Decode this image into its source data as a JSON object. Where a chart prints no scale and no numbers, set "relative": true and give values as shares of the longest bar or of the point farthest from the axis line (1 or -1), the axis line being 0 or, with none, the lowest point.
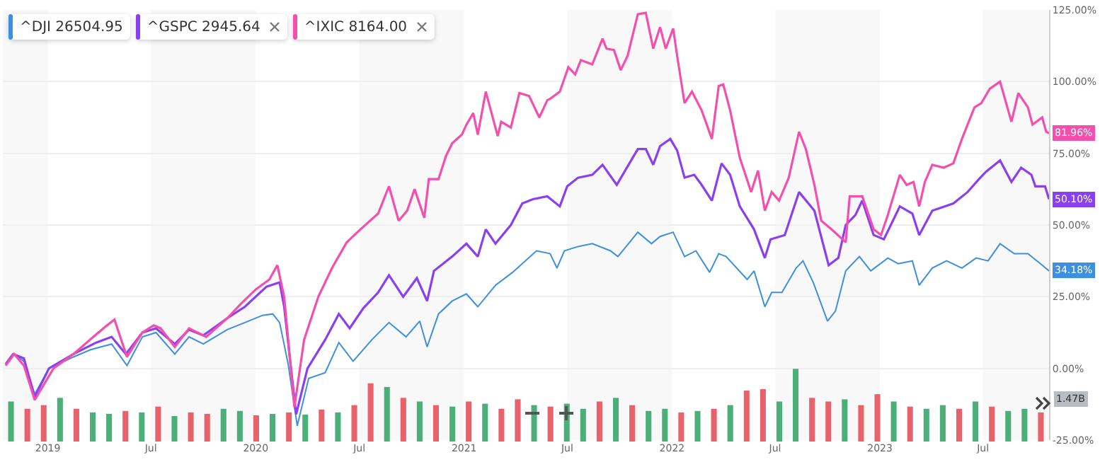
{
  "chart_data": [
    {
      "type": "line",
      "xlim": [
        "2018-10-14",
        "2023-10-25"
      ],
      "xticks": [
        {
          "value": "2019-01-01",
          "label": "2019"
        },
        {
          "value": "2019-07-01",
          "label": "Jul"
        },
        {
          "value": "2020-01-01",
          "label": "2020"
        },
        {
          "value": "2020-07-01",
          "label": "Jul"
        },
        {
          "value": "2021-01-01",
          "label": "2021"
        },
        {
          "value": "2021-07-01",
          "label": "Jul"
        },
        {
          "value": "2022-01-01",
          "label": "2022"
        },
        {
          "value": "2022-07-01",
          "label": "Jul"
        },
        {
          "value": "2023-01-01",
          "label": "2023"
        },
        {
          "value": "2023-07-01",
          "label": "Jul"
        }
      ],
      "ylim": [
        -25,
        125
      ],
      "yticks": [
        {
          "value": -25,
          "label": "-25.00%"
        },
        {
          "value": 0,
          "label": "0.00%"
        },
        {
          "value": 25,
          "label": "25.00%"
        },
        {
          "value": 50,
          "label": "50.00%"
        },
        {
          "value": 75,
          "label": "75.00%"
        },
        {
          "value": 100,
          "label": "100.00%"
        },
        {
          "value": 125,
          "label": "125.00%"
        }
      ],
      "grid": "y",
      "legend": "top left",
      "line_style": "solid",
      "bands": [
        {
          "axis": "x",
          "from": "2018-10-14",
          "to": "2019-01-01",
          "color": "#f4f4f4"
        },
        {
          "axis": "x",
          "from": "2019-07-01",
          "to": "2020-01-01",
          "color": "#f4f4f4"
        },
        {
          "axis": "x",
          "from": "2020-07-01",
          "to": "2021-01-01",
          "color": "#f4f4f4"
        },
        {
          "axis": "x",
          "from": "2021-07-01",
          "to": "2022-01-01",
          "color": "#f4f4f4"
        },
        {
          "axis": "x",
          "from": "2022-07-01",
          "to": "2023-01-01",
          "color": "#f4f4f4"
        },
        {
          "axis": "x",
          "from": "2023-07-01",
          "to": "2023-10-25",
          "color": "#f4f4f4"
        }
      ],
      "series": [
        {
          "name": "^DJI 26504.95",
          "color": "#3d8fe0",
          "x": [
            "2018-10-19",
            "2018-11-01",
            "2018-11-20",
            "2018-12-09",
            "2019-01-03",
            "2019-02-15",
            "2019-03-17",
            "2019-04-23",
            "2019-05-20",
            "2019-06-16",
            "2019-07-10",
            "2019-08-12",
            "2019-09-06",
            "2019-10-01",
            "2019-11-12",
            "2019-12-13",
            "2020-01-13",
            "2020-01-31",
            "2020-02-12",
            "2020-02-27",
            "2020-03-14",
            "2020-04-03",
            "2020-05-02",
            "2020-05-26",
            "2020-06-20",
            "2020-07-23",
            "2020-08-22",
            "2020-09-21",
            "2020-10-15",
            "2020-10-28",
            "2020-11-17",
            "2020-12-11",
            "2021-01-05",
            "2021-01-25",
            "2021-02-25",
            "2021-03-27",
            "2021-05-08",
            "2021-06-01",
            "2021-06-13",
            "2021-06-26",
            "2021-07-20",
            "2021-08-14",
            "2021-09-15",
            "2021-09-28",
            "2021-11-02",
            "2021-11-26",
            "2021-12-11",
            "2022-01-03",
            "2022-01-23",
            "2022-02-12",
            "2022-03-08",
            "2022-03-24",
            "2022-04-06",
            "2022-05-13",
            "2022-05-25",
            "2022-06-13",
            "2022-06-25",
            "2022-07-13",
            "2022-08-07",
            "2022-08-19",
            "2022-09-06",
            "2022-10-01",
            "2022-10-15",
            "2022-11-02",
            "2022-11-26",
            "2022-12-16",
            "2023-01-15",
            "2023-02-02",
            "2023-02-27",
            "2023-03-11",
            "2023-04-03",
            "2023-04-28",
            "2023-05-25",
            "2023-06-19",
            "2023-07-10",
            "2023-07-31",
            "2023-08-25",
            "2023-09-18",
            "2023-10-13",
            "2023-10-25"
          ],
          "values": [
            1.5,
            5,
            2.5,
            -9,
            0,
            4,
            6.5,
            8.5,
            1,
            11,
            12.5,
            5,
            11,
            8.5,
            13.5,
            16,
            18.5,
            19,
            16,
            1.5,
            -20,
            -3.5,
            -1.5,
            9,
            2.5,
            10,
            16,
            11,
            16.5,
            7.5,
            19,
            23.5,
            26,
            21.5,
            29,
            33.5,
            41,
            40,
            35,
            41,
            42.5,
            43.5,
            41,
            39,
            47.5,
            43.5,
            46,
            47.5,
            39,
            41,
            33.5,
            40,
            39,
            31,
            34,
            21.5,
            26.5,
            26.5,
            35,
            37.5,
            30,
            16.5,
            20,
            34,
            39,
            34,
            38.5,
            36.5,
            37.5,
            29,
            35,
            37.5,
            35,
            38.5,
            37.5,
            43.5,
            40,
            40,
            36,
            34
          ]
        },
        {
          "name": "^GSPC 2945.64",
          "color": "#8a3ff0",
          "x": [
            "2018-10-19",
            "2018-11-01",
            "2018-11-20",
            "2018-12-09",
            "2019-01-03",
            "2019-02-15",
            "2019-03-27",
            "2019-04-23",
            "2019-05-18",
            "2019-06-16",
            "2019-07-10",
            "2019-08-12",
            "2019-09-06",
            "2019-10-01",
            "2019-11-12",
            "2019-12-13",
            "2020-01-20",
            "2020-02-12",
            "2020-02-20",
            "2020-03-12",
            "2020-04-01",
            "2020-05-02",
            "2020-05-26",
            "2020-06-14",
            "2020-07-08",
            "2020-08-03",
            "2020-08-22",
            "2020-09-16",
            "2020-10-10",
            "2020-10-28",
            "2020-11-09",
            "2020-12-11",
            "2021-01-05",
            "2021-01-25",
            "2021-02-08",
            "2021-02-25",
            "2021-03-24",
            "2021-04-13",
            "2021-05-02",
            "2021-05-27",
            "2021-06-18",
            "2021-07-01",
            "2021-07-20",
            "2021-08-14",
            "2021-09-01",
            "2021-09-26",
            "2021-11-02",
            "2021-11-16",
            "2021-11-29",
            "2021-12-11",
            "2021-12-29",
            "2022-01-10",
            "2022-01-23",
            "2022-02-09",
            "2022-02-22",
            "2022-03-12",
            "2022-03-29",
            "2022-04-13",
            "2022-04-30",
            "2022-05-25",
            "2022-06-13",
            "2022-06-23",
            "2022-07-18",
            "2022-08-12",
            "2022-09-08",
            "2022-10-03",
            "2022-10-20",
            "2022-11-02",
            "2022-11-19",
            "2022-12-01",
            "2022-12-21",
            "2023-01-08",
            "2023-02-05",
            "2023-02-27",
            "2023-03-11",
            "2023-04-03",
            "2023-05-10",
            "2023-06-04",
            "2023-06-24",
            "2023-07-06",
            "2023-07-31",
            "2023-08-20",
            "2023-09-06",
            "2023-09-24",
            "2023-10-01",
            "2023-10-18",
            "2023-10-25"
          ],
          "values": [
            1.5,
            5,
            3.5,
            -10,
            0,
            5,
            9,
            11,
            5,
            12.5,
            14,
            8.5,
            13.5,
            11.5,
            17.5,
            21.5,
            28.5,
            30,
            21.5,
            -16,
            0,
            10,
            19,
            14,
            21,
            26.5,
            32.5,
            25,
            31.5,
            23.5,
            34,
            39,
            43.5,
            39,
            48.5,
            43.5,
            50,
            57.5,
            59,
            60,
            56.5,
            63.5,
            66.5,
            67.5,
            71,
            64,
            76.5,
            76.5,
            71,
            77.5,
            80,
            76,
            66.5,
            67.5,
            64,
            58.5,
            71.5,
            67.5,
            56.5,
            48.5,
            38.5,
            45,
            46.5,
            61.5,
            55,
            36,
            38.5,
            50,
            53.5,
            58.5,
            46.5,
            45,
            56.5,
            54,
            46.5,
            55,
            57.5,
            61.5,
            66,
            68.5,
            72.5,
            65,
            70,
            67.5,
            63.5,
            63.5,
            59
          ]
        },
        {
          "name": "^IXIC 8164.00",
          "color": "#f54fad",
          "x": [
            "2018-10-19",
            "2018-11-03",
            "2018-11-20",
            "2018-12-09",
            "2019-01-11",
            "2019-02-15",
            "2019-03-22",
            "2019-04-15",
            "2019-04-28",
            "2019-05-20",
            "2019-06-16",
            "2019-07-06",
            "2019-07-18",
            "2019-08-12",
            "2019-09-06",
            "2019-10-06",
            "2019-11-12",
            "2019-12-06",
            "2020-01-01",
            "2020-01-25",
            "2020-02-08",
            "2020-02-20",
            "2020-03-09",
            "2020-03-26",
            "2020-04-20",
            "2020-05-14",
            "2020-06-09",
            "2020-07-03",
            "2020-08-03",
            "2020-08-22",
            "2020-09-08",
            "2020-09-23",
            "2020-10-06",
            "2020-10-23",
            "2020-10-31",
            "2020-11-17",
            "2020-11-30",
            "2020-12-11",
            "2020-12-28",
            "2021-01-05",
            "2021-01-17",
            "2021-01-25",
            "2021-02-08",
            "2021-03-01",
            "2021-03-07",
            "2021-03-24",
            "2021-04-08",
            "2021-04-25",
            "2021-05-13",
            "2021-05-27",
            "2021-06-01",
            "2021-06-18",
            "2021-07-03",
            "2021-07-15",
            "2021-07-25",
            "2021-08-14",
            "2021-09-01",
            "2021-09-08",
            "2021-09-21",
            "2021-10-03",
            "2021-10-15",
            "2021-11-02",
            "2021-11-16",
            "2021-11-29",
            "2021-12-11",
            "2021-12-21",
            "2022-01-03",
            "2022-01-10",
            "2022-01-23",
            "2022-02-05",
            "2022-02-22",
            "2022-03-12",
            "2022-03-24",
            "2022-04-01",
            "2022-04-13",
            "2022-04-30",
            "2022-05-20",
            "2022-06-01",
            "2022-06-13",
            "2022-06-25",
            "2022-07-08",
            "2022-07-25",
            "2022-08-12",
            "2022-08-24",
            "2022-09-08",
            "2022-09-20",
            "2022-10-08",
            "2022-11-02",
            "2022-11-09",
            "2022-12-01",
            "2022-12-21",
            "2023-01-03",
            "2023-01-15",
            "2023-02-05",
            "2023-02-17",
            "2023-03-01",
            "2023-03-11",
            "2023-03-21",
            "2023-04-03",
            "2023-04-23",
            "2023-05-10",
            "2023-05-25",
            "2023-06-16",
            "2023-06-28",
            "2023-07-13",
            "2023-07-31",
            "2023-08-20",
            "2023-09-01",
            "2023-09-18",
            "2023-09-26",
            "2023-10-13",
            "2023-10-20",
            "2023-10-25"
          ],
          "values": [
            1,
            5,
            1,
            -11,
            0,
            5,
            11,
            15,
            17,
            4,
            12.5,
            15,
            14,
            7.5,
            14,
            11,
            17.5,
            22.5,
            27.5,
            31,
            36,
            25,
            -13.5,
            10,
            25,
            35,
            44,
            48.5,
            54,
            63.5,
            51.5,
            55,
            62.5,
            52.5,
            66,
            66,
            74,
            78.5,
            81.5,
            85,
            89,
            81.5,
            96.5,
            81,
            86,
            84,
            96,
            95,
            87.5,
            93.5,
            94,
            96.5,
            105,
            102.5,
            107.5,
            106,
            115,
            111.5,
            111,
            104,
            109,
            123.5,
            124,
            111.5,
            119,
            111.5,
            118.5,
            109,
            92.5,
            96.5,
            90,
            80,
            98.5,
            99,
            90,
            73.5,
            61.5,
            69,
            55,
            61.5,
            58.5,
            66.5,
            82.5,
            76.5,
            64,
            51.5,
            48.5,
            44,
            60,
            60,
            48.5,
            46.5,
            53.5,
            67.5,
            64,
            65,
            56.5,
            65,
            71,
            70,
            71.5,
            80,
            91,
            92.5,
            97.5,
            100,
            86,
            96,
            91,
            85,
            87.5,
            82.5,
            82
          ]
        }
      ],
      "annotations": [
        {
          "text": "34.18%",
          "x": "2023-10-25",
          "y": 34.18
        },
        {
          "text": "50.10%",
          "x": "2023-10-25",
          "y": 59
        },
        {
          "text": "81.96%",
          "x": "2023-10-25",
          "y": 81.96
        }
      ]
    },
    {
      "type": "bar",
      "relative": true,
      "categories": [
        null,
        null,
        null,
        null,
        null,
        null,
        null,
        null,
        null,
        null,
        null,
        null,
        null,
        null,
        null,
        null,
        null,
        null,
        null,
        null,
        null,
        null,
        null,
        null,
        null,
        null,
        null,
        null,
        null,
        null,
        null,
        null,
        null,
        null,
        null,
        null,
        null,
        null,
        null,
        null,
        null,
        null,
        null,
        null,
        null,
        null,
        null,
        null,
        null,
        null,
        null,
        null,
        null,
        null,
        null,
        null,
        null,
        null,
        null,
        null,
        null,
        null,
        null,
        null
      ],
      "values": [
        0.55,
        0.45,
        0.5,
        0.6,
        0.45,
        0.4,
        0.38,
        0.42,
        0.4,
        0.48,
        0.35,
        0.4,
        0.38,
        0.45,
        0.42,
        0.36,
        0.38,
        0.4,
        0.37,
        0.44,
        0.4,
        0.5,
        0.8,
        0.75,
        0.6,
        0.55,
        0.5,
        0.48,
        0.55,
        0.52,
        0.45,
        0.58,
        0.5,
        0.48,
        0.52,
        0.45,
        0.55,
        0.6,
        0.5,
        0.42,
        0.45,
        0.4,
        0.42,
        0.45,
        0.5,
        0.7,
        0.72,
        0.55,
        1,
        0.6,
        0.55,
        0.58,
        0.5,
        0.65,
        0.55,
        0.48,
        0.45,
        0.5,
        0.45,
        0.55,
        0.48,
        0.42,
        0.45,
        0.4
      ],
      "colors": [
        "#4caf7a",
        "#e8626b",
        "#e8626b",
        "#4caf7a",
        "#e8626b",
        "#4caf7a",
        "#4caf7a",
        "#e8626b",
        "#4caf7a",
        "#e8626b",
        "#4caf7a",
        "#e8626b",
        "#e8626b",
        "#4caf7a",
        "#4caf7a",
        "#e8626b",
        "#4caf7a",
        "#e8626b",
        "#4caf7a",
        "#e8626b",
        "#4caf7a",
        "#e8626b",
        "#e8626b",
        "#4caf7a",
        "#e8626b",
        "#4caf7a",
        "#e8626b",
        "#4caf7a",
        "#e8626b",
        "#4caf7a",
        "#e8626b",
        "#e8626b",
        "#4caf7a",
        "#e8626b",
        "#4caf7a",
        "#4caf7a",
        "#e8626b",
        "#4caf7a",
        "#e8626b",
        "#4caf7a",
        "#4caf7a",
        "#e8626b",
        "#4caf7a",
        "#e8626b",
        "#4caf7a",
        "#e8626b",
        "#e8626b",
        "#4caf7a",
        "#4caf7a",
        "#e8626b",
        "#e8626b",
        "#4caf7a",
        "#e8626b",
        "#e8626b",
        "#4caf7a",
        "#e8626b",
        "#4caf7a",
        "#4caf7a",
        "#e8626b",
        "#4caf7a",
        "#e8626b",
        "#4caf7a",
        "#4caf7a",
        "#e8626b"
      ],
      "annotations": [
        "1.47B"
      ]
    }
  ]
}
